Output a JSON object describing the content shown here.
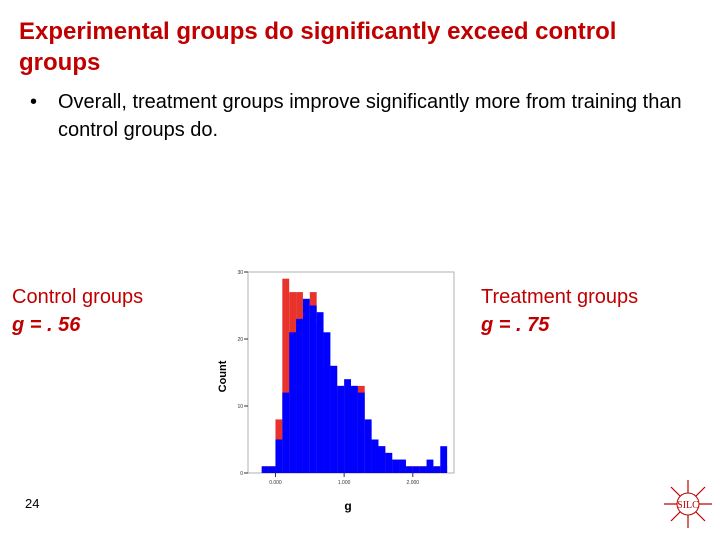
{
  "slide": {
    "title": "Experimental groups do significantly exceed control groups",
    "bullet": "Overall, treatment groups improve significantly more from training than control groups do.",
    "bullet_marker": "•",
    "page_number": "24"
  },
  "labels": {
    "control": {
      "name": "Control groups",
      "stat": "g = . 56"
    },
    "treatment": {
      "name": "Treatment groups",
      "stat": "g = . 75"
    }
  },
  "logo": {
    "text": "SILC"
  },
  "colors": {
    "title": "#c00000",
    "control": "#e8322c",
    "treatment": "#0000ff"
  },
  "chart_data": {
    "type": "bar",
    "title": "",
    "xlabel": "g",
    "ylabel": "Count",
    "xlim": [
      -0.4,
      2.6
    ],
    "ylim": [
      0,
      30
    ],
    "bin_width": 0.1,
    "bin_starts": [
      -0.2,
      -0.1,
      0.0,
      0.1,
      0.2,
      0.3,
      0.4,
      0.5,
      0.6,
      0.7,
      0.8,
      0.9,
      1.0,
      1.1,
      1.2,
      1.3,
      1.4,
      1.5,
      1.6,
      1.7,
      1.8,
      1.9,
      2.0,
      2.1,
      2.2,
      2.3,
      2.4
    ],
    "x_ticks": [
      0.0,
      1.0,
      2.0
    ],
    "x_tick_labels": [
      "0.000",
      "1.000",
      "2.000"
    ],
    "y_ticks": [
      0,
      10,
      20,
      30
    ],
    "y_tick_labels": [
      "0",
      "10",
      "20",
      "30"
    ],
    "series": [
      {
        "name": "Control groups",
        "values": [
          1,
          1,
          8,
          29,
          27,
          27,
          25,
          27,
          22,
          16,
          13,
          13,
          13,
          13,
          13,
          7,
          5,
          4,
          3,
          2,
          2,
          1,
          1,
          1,
          1,
          1,
          1
        ]
      },
      {
        "name": "Treatment groups",
        "values": [
          1,
          1,
          5,
          12,
          21,
          23,
          26,
          25,
          24,
          21,
          16,
          13,
          14,
          13,
          12,
          8,
          5,
          4,
          3,
          2,
          2,
          1,
          1,
          1,
          2,
          1,
          4
        ]
      }
    ]
  }
}
